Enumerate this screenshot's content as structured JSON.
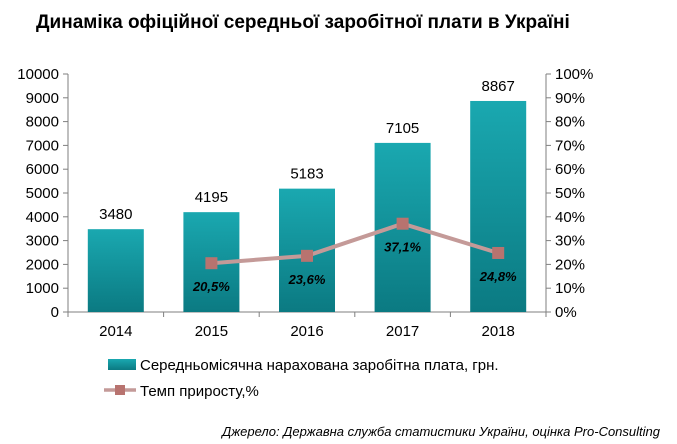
{
  "chart_data": {
    "type": "bar",
    "title": "Динаміка офіційної середньої заробітної плати в Україні",
    "categories": [
      "2014",
      "2015",
      "2016",
      "2017",
      "2018"
    ],
    "series": [
      {
        "name": "Середньомісячна нарахована заробітна плата, грн.",
        "type": "bar",
        "axis": "left",
        "values": [
          3480,
          4195,
          5183,
          7105,
          8867
        ],
        "labels": [
          "3480",
          "4195",
          "5183",
          "7105",
          "8867"
        ]
      },
      {
        "name": "Темп приросту,%",
        "type": "line",
        "axis": "right",
        "values": [
          null,
          20.5,
          23.6,
          37.1,
          24.8
        ],
        "labels": [
          "",
          "20,5%",
          "23,6%",
          "37,1%",
          "24,8%"
        ]
      }
    ],
    "y_left": {
      "min": 0,
      "max": 10000,
      "ticks": [
        "0",
        "1000",
        "2000",
        "3000",
        "4000",
        "5000",
        "6000",
        "7000",
        "8000",
        "9000",
        "10000"
      ]
    },
    "y_right": {
      "min": 0,
      "max": 100,
      "ticks": [
        "0%",
        "10%",
        "20%",
        "30%",
        "40%",
        "50%",
        "60%",
        "70%",
        "80%",
        "90%",
        "100%"
      ]
    },
    "grid": false,
    "legend_position": "bottom-left",
    "colors": {
      "bar_top": "#1aa8b0",
      "bar_bottom": "#0b7a82",
      "line": "#c49a98",
      "marker": "#b8736f"
    }
  },
  "source": "Джерело: Державна служба статистики України, оцінка Pro-Consulting"
}
